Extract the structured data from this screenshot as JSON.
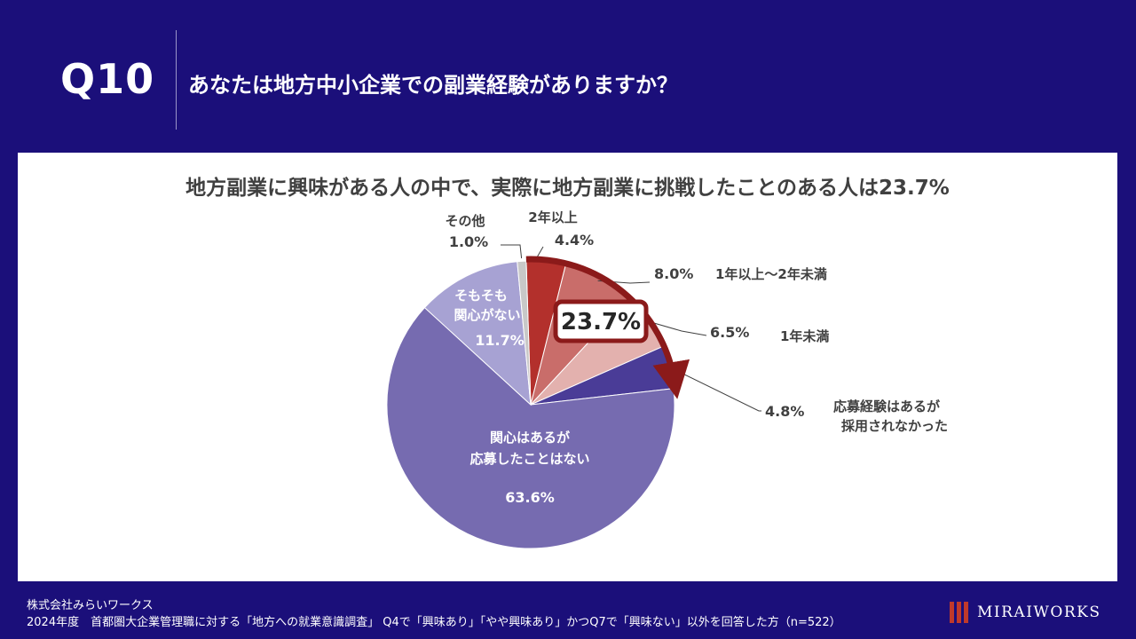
{
  "header": {
    "question_number": "Q10",
    "question_text": "あなたは地方中小企業での副業経験がありますか？"
  },
  "panel": {
    "headline": "地方副業に興味がある人の中で、実際に地方副業に挑戦したことのある人は23.7%"
  },
  "chart_data": {
    "type": "pie",
    "unit": "%",
    "start_angle_deg": -1.8,
    "direction": "clockwise",
    "slices": [
      {
        "label": "2年以上",
        "value": 4.4,
        "color": "#b3302c"
      },
      {
        "label": "1年以上～2年未満",
        "value": 8.0,
        "color": "#c96d6a"
      },
      {
        "label": "1年未満",
        "value": 6.5,
        "color": "#e3b1ae"
      },
      {
        "label": "応募経験はあるが採用されなかった",
        "value": 4.8,
        "color": "#4a3c97"
      },
      {
        "label": "関心はあるが応募したことはない",
        "value": 63.6,
        "color": "#766bb0"
      },
      {
        "label": "そもそも関心がない",
        "value": 11.7,
        "color": "#a7a2d3"
      },
      {
        "label": "その他",
        "value": 1.0,
        "color": "#c8c8c8"
      }
    ],
    "slice_labels": {
      "s0_name": "2年以上",
      "s0_value": "4.4%",
      "s1_name": "1年以上～2年未満",
      "s1_value": "8.0%",
      "s2_name": "1年未満",
      "s2_value": "6.5%",
      "s3_name_line1": "応募経験はあるが",
      "s3_name_line2": "採用されなかった",
      "s3_value": "4.8%",
      "s4_name_line1": "関心はあるが",
      "s4_name_line2": "応募したことはない",
      "s4_value": "63.6%",
      "s5_name_line1": "そもそも",
      "s5_name_line2": "関心がない",
      "s5_value": "11.7%",
      "s6_name": "その他",
      "s6_value": "1.0%"
    },
    "callout": {
      "value": "23.7%",
      "covers_slices": [
        "2年以上",
        "1年以上～2年未満",
        "1年未満",
        "応募経験はあるが採用されなかった"
      ],
      "arrow_color": "#8b1a1a"
    }
  },
  "footer": {
    "company": "株式会社みらいワークス",
    "source": "2024年度　首都圏大企業管理職に対する「地方への就業意識調査」 Q4で「興味あり」「やや興味あり」かつQ7で「興味ない」以外を回答した方（n=522）"
  },
  "logo": {
    "text": "MIRAIWORKS",
    "color": "#c0392b"
  }
}
